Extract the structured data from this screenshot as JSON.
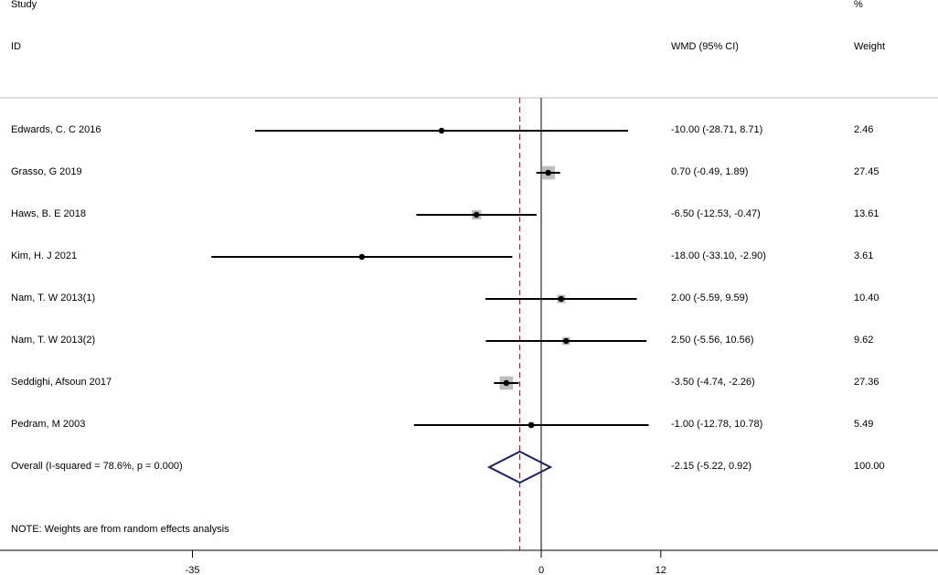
{
  "header": {
    "study_label": "Study",
    "id_label": "ID",
    "effect_label": "WMD (95% CI)",
    "pct_label": "%",
    "weight_label": "Weight"
  },
  "note": "NOTE: Weights are from random effects analysis",
  "colors": {
    "line": "#000000",
    "diamond": "#1a1f6b",
    "overall_dashed": "#8b1a1a",
    "weight_box": "#bdbdbd"
  },
  "chart_data": {
    "type": "forest",
    "effect_measure": "WMD",
    "x_ticks": [
      -35,
      0,
      12
    ],
    "x_tick_labels": [
      "-35",
      "0",
      "12"
    ],
    "xlim": [
      -54,
      40
    ],
    "reference_line": 0,
    "studies": [
      {
        "id": "Edwards, C. C 2016",
        "estimate": -10.0,
        "lower": -28.71,
        "upper": 8.71,
        "ci_text": "-10.00 (-28.71, 8.71)",
        "weight": 2.46,
        "weight_text": "2.46"
      },
      {
        "id": "Grasso, G 2019",
        "estimate": 0.7,
        "lower": -0.49,
        "upper": 1.89,
        "ci_text": "0.70 (-0.49, 1.89)",
        "weight": 27.45,
        "weight_text": "27.45"
      },
      {
        "id": "Haws, B. E 2018",
        "estimate": -6.5,
        "lower": -12.53,
        "upper": -0.47,
        "ci_text": "-6.50 (-12.53, -0.47)",
        "weight": 13.61,
        "weight_text": "13.61"
      },
      {
        "id": "Kim, H. J 2021",
        "estimate": -18.0,
        "lower": -33.1,
        "upper": -2.9,
        "ci_text": "-18.00 (-33.10, -2.90)",
        "weight": 3.61,
        "weight_text": "3.61"
      },
      {
        "id": "Nam, T. W 2013(1)",
        "estimate": 2.0,
        "lower": -5.59,
        "upper": 9.59,
        "ci_text": "2.00 (-5.59, 9.59)",
        "weight": 10.4,
        "weight_text": "10.40"
      },
      {
        "id": "Nam, T. W 2013(2)",
        "estimate": 2.5,
        "lower": -5.56,
        "upper": 10.56,
        "ci_text": "2.50 (-5.56, 10.56)",
        "weight": 9.62,
        "weight_text": "9.62"
      },
      {
        "id": "Seddighi, Afsoun 2017",
        "estimate": -3.5,
        "lower": -4.74,
        "upper": -2.26,
        "ci_text": "-3.50 (-4.74, -2.26)",
        "weight": 27.36,
        "weight_text": "27.36"
      },
      {
        "id": "Pedram, M 2003",
        "estimate": -1.0,
        "lower": -12.78,
        "upper": 10.78,
        "ci_text": "-1.00 (-12.78, 10.78)",
        "weight": 5.49,
        "weight_text": "5.49"
      }
    ],
    "overall": {
      "label": "Overall  (I-squared = 78.6%, p = 0.000)",
      "estimate": -2.15,
      "lower": -5.22,
      "upper": 0.92,
      "ci_text": "-2.15 (-5.22, 0.92)",
      "weight": 100.0,
      "weight_text": "100.00"
    }
  }
}
